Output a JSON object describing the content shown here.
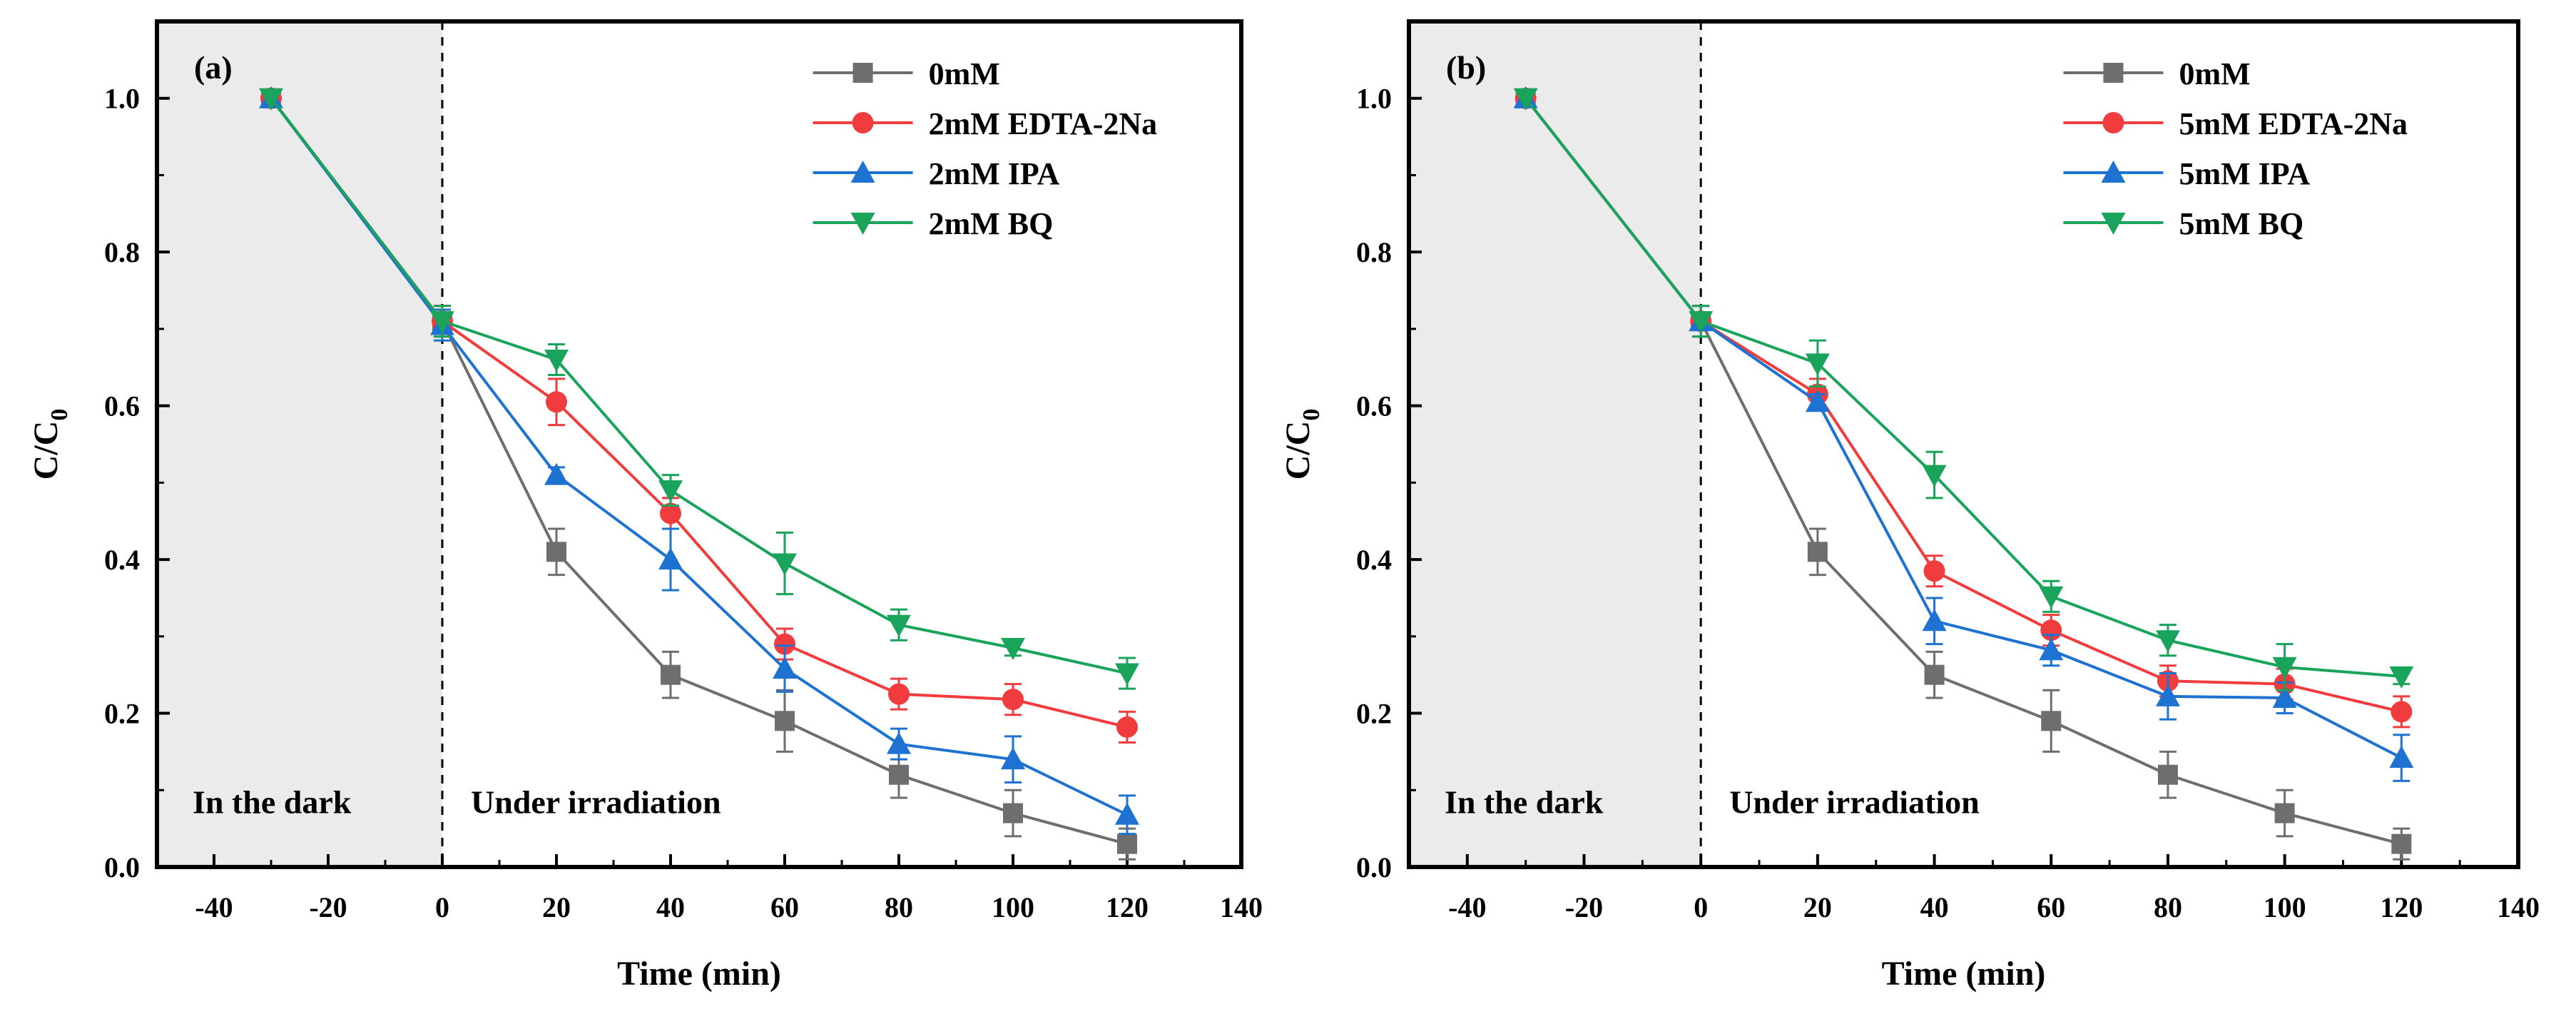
{
  "chart_data": [
    {
      "type": "line",
      "panel_label": "(a)",
      "xlabel": "Time (min)",
      "ylabel_main": "C/C",
      "ylabel_sub": "0",
      "xlim": [
        -50,
        140
      ],
      "ylim": [
        0.0,
        1.1
      ],
      "x_ticks": [
        -40,
        -20,
        0,
        20,
        40,
        60,
        80,
        100,
        120,
        140
      ],
      "x_tick_labels": [
        "-40",
        "-20",
        "0",
        "20",
        "40",
        "60",
        "80",
        "100",
        "120",
        "140"
      ],
      "y_ticks": [
        0.0,
        0.2,
        0.4,
        0.6,
        0.8,
        1.0
      ],
      "y_tick_labels": [
        "0.0",
        "0.2",
        "0.4",
        "0.6",
        "0.8",
        "1.0"
      ],
      "dark_region": {
        "x_start": -50,
        "x_end": 0,
        "label": "In the dark"
      },
      "light_region_label": "Under irradiation",
      "legend_position": "top-right",
      "x": [
        -30,
        0,
        20,
        40,
        60,
        80,
        100,
        120
      ],
      "series": [
        {
          "name": "0mM",
          "color": "#6e6e6e",
          "marker": "square",
          "values": [
            1.0,
            0.71,
            0.41,
            0.25,
            0.19,
            0.12,
            0.07,
            0.03
          ],
          "errors": [
            0,
            0.02,
            0.03,
            0.03,
            0.04,
            0.03,
            0.03,
            0.02
          ]
        },
        {
          "name": "2mM EDTA-2Na",
          "color": "#f03c3c",
          "marker": "circle",
          "values": [
            1.0,
            0.71,
            0.605,
            0.46,
            0.29,
            0.225,
            0.218,
            0.182
          ],
          "errors": [
            0,
            0.02,
            0.03,
            0.02,
            0.02,
            0.02,
            0.02,
            0.02
          ]
        },
        {
          "name": "2mM IPA",
          "color": "#1e73d2",
          "marker": "triangle-up",
          "values": [
            1.0,
            0.705,
            0.51,
            0.4,
            0.258,
            0.16,
            0.14,
            0.068
          ],
          "errors": [
            0,
            0.02,
            0.01,
            0.04,
            0.03,
            0.02,
            0.03,
            0.025
          ]
        },
        {
          "name": "2mM BQ",
          "color": "#1aa35b",
          "marker": "triangle-down",
          "values": [
            1.0,
            0.71,
            0.66,
            0.49,
            0.395,
            0.315,
            0.285,
            0.252
          ],
          "errors": [
            0,
            0.02,
            0.02,
            0.02,
            0.04,
            0.02,
            0.01,
            0.02
          ]
        }
      ]
    },
    {
      "type": "line",
      "panel_label": "(b)",
      "xlabel": "Time (min)",
      "ylabel_main": "C/C",
      "ylabel_sub": "0",
      "xlim": [
        -50,
        140
      ],
      "ylim": [
        0.0,
        1.1
      ],
      "x_ticks": [
        -40,
        -20,
        0,
        20,
        40,
        60,
        80,
        100,
        120,
        140
      ],
      "x_tick_labels": [
        "-40",
        "-20",
        "0",
        "20",
        "40",
        "60",
        "80",
        "100",
        "120",
        "140"
      ],
      "y_ticks": [
        0.0,
        0.2,
        0.4,
        0.6,
        0.8,
        1.0
      ],
      "y_tick_labels": [
        "0.0",
        "0.2",
        "0.4",
        "0.6",
        "0.8",
        "1.0"
      ],
      "dark_region": {
        "x_start": -50,
        "x_end": 0,
        "label": "In the dark"
      },
      "light_region_label": "Under irradiation",
      "legend_position": "top-right",
      "x": [
        -30,
        0,
        20,
        40,
        60,
        80,
        100,
        120
      ],
      "series": [
        {
          "name": "0mM",
          "color": "#6e6e6e",
          "marker": "square",
          "values": [
            1.0,
            0.71,
            0.41,
            0.25,
            0.19,
            0.12,
            0.07,
            0.03
          ],
          "errors": [
            0,
            0.02,
            0.03,
            0.03,
            0.04,
            0.03,
            0.03,
            0.02
          ]
        },
        {
          "name": "5mM EDTA-2Na",
          "color": "#f03c3c",
          "marker": "circle",
          "values": [
            1.0,
            0.71,
            0.615,
            0.385,
            0.308,
            0.242,
            0.238,
            0.202
          ],
          "errors": [
            0,
            0.02,
            0.02,
            0.02,
            0.02,
            0.02,
            0.02,
            0.02
          ]
        },
        {
          "name": "5mM IPA",
          "color": "#1e73d2",
          "marker": "triangle-up",
          "values": [
            1.0,
            0.71,
            0.605,
            0.32,
            0.282,
            0.222,
            0.22,
            0.142
          ],
          "errors": [
            0,
            0.02,
            0.01,
            0.03,
            0.02,
            0.03,
            0.02,
            0.03
          ]
        },
        {
          "name": "5mM BQ",
          "color": "#1aa35b",
          "marker": "triangle-down",
          "values": [
            1.0,
            0.71,
            0.655,
            0.51,
            0.352,
            0.295,
            0.26,
            0.248
          ],
          "errors": [
            0,
            0.02,
            0.03,
            0.03,
            0.02,
            0.02,
            0.03,
            0.01
          ]
        }
      ]
    }
  ]
}
